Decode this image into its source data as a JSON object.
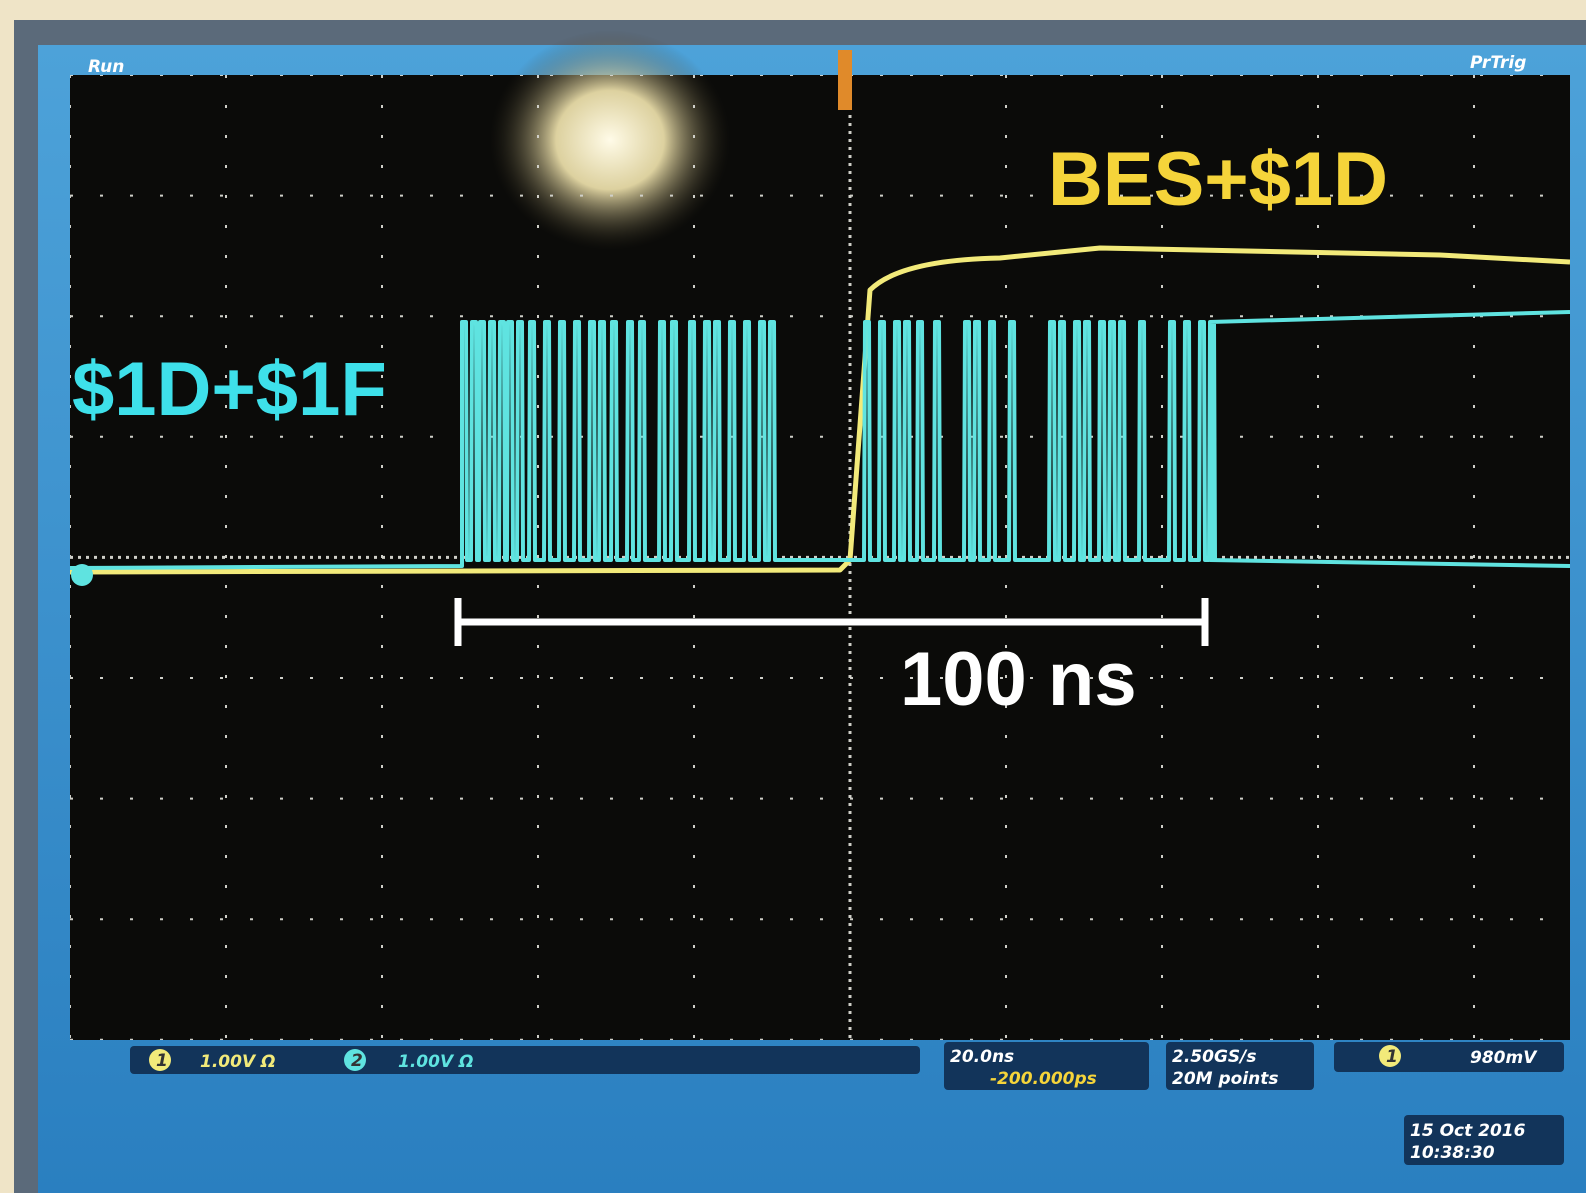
{
  "screen": {
    "status": "Run",
    "trigger_mode": "PrTrig"
  },
  "annotations": {
    "channel1": "BES+$1D",
    "channel2": "$1D+$1F",
    "scale_bar": "100 ns"
  },
  "channels": [
    {
      "marker": "1",
      "setting": "1.00V Ω"
    },
    {
      "marker": "2",
      "setting": "1.00V Ω"
    }
  ],
  "timebase": {
    "scale": "20.0ns",
    "delay": "-200.000ps"
  },
  "acquisition": {
    "rate": "2.50GS/s",
    "length": "20M points"
  },
  "trigger": {
    "source": "1",
    "level": "980mV"
  },
  "timestamp": {
    "date": "15 Oct 2016",
    "time": "10:38:30"
  }
}
